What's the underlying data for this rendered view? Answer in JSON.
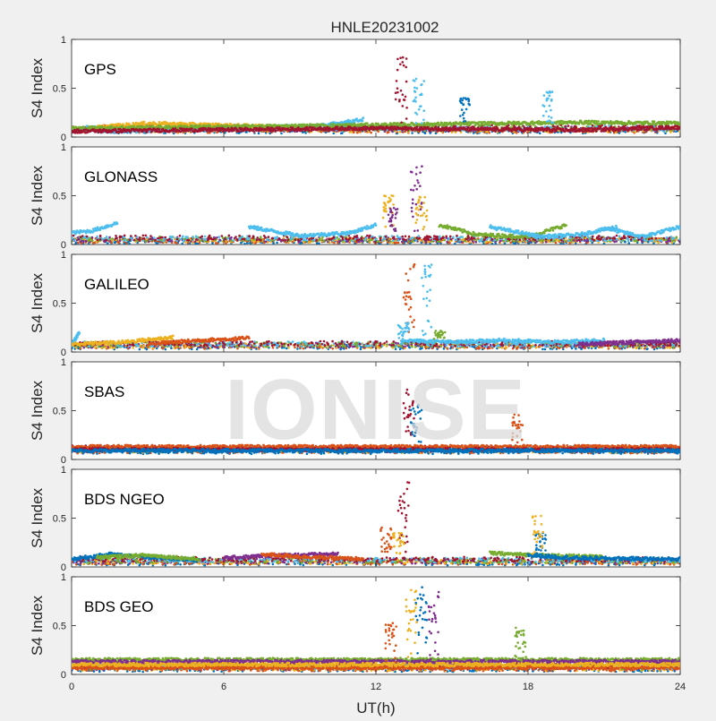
{
  "chart_data": {
    "type": "scatter",
    "title": "HNLE20231002",
    "xlabel": "UT(h)",
    "ylabel": "S4 Index",
    "xlim": [
      0,
      24
    ],
    "ylim": [
      0,
      1
    ],
    "x_ticks": [
      0,
      6,
      12,
      18,
      24
    ],
    "y_ticks": [
      0,
      0.5,
      1
    ],
    "watermark": "IONISE",
    "colors": [
      "#0072BD",
      "#D95319",
      "#EDB120",
      "#7E2F8E",
      "#77AC30",
      "#4DBEEE",
      "#A2142F"
    ],
    "panels": [
      {
        "label": "GPS",
        "baseline": [
          [
            0,
            0.08
          ],
          [
            24,
            0.08
          ]
        ],
        "arcs": [
          {
            "color": "#4DBEEE",
            "points": [
              [
                0,
                0.07
              ],
              [
                2,
                0.06
              ],
              [
                5,
                0.08
              ],
              [
                8,
                0.1
              ],
              [
                10,
                0.12
              ],
              [
                11.5,
                0.18
              ]
            ]
          },
          {
            "color": "#EDB120",
            "points": [
              [
                1,
                0.1
              ],
              [
                3,
                0.14
              ],
              [
                6,
                0.12
              ],
              [
                9,
                0.1
              ]
            ]
          },
          {
            "color": "#77AC30",
            "points": [
              [
                0,
                0.09
              ],
              [
                4,
                0.1
              ],
              [
                8,
                0.11
              ],
              [
                20,
                0.15
              ],
              [
                24,
                0.14
              ]
            ]
          },
          {
            "color": "#A2142F",
            "points": [
              [
                0,
                0.06
              ],
              [
                4,
                0.07
              ],
              [
                8,
                0.08
              ],
              [
                12,
                0.09
              ],
              [
                16,
                0.08
              ],
              [
                20,
                0.07
              ],
              [
                24,
                0.1
              ]
            ]
          }
        ],
        "spikes": [
          {
            "color": "#A2142F",
            "x": 13.0,
            "peak": 0.83
          },
          {
            "color": "#4DBEEE",
            "x": 13.7,
            "peak": 0.62
          },
          {
            "color": "#0072BD",
            "x": 15.5,
            "peak": 0.4
          },
          {
            "color": "#4DBEEE",
            "x": 18.8,
            "peak": 0.47
          }
        ]
      },
      {
        "label": "GLONASS",
        "baseline": [
          [
            0,
            0.05
          ],
          [
            24,
            0.05
          ]
        ],
        "arcs": [
          {
            "color": "#4DBEEE",
            "points": [
              [
                0,
                0.12
              ],
              [
                0.8,
                0.14
              ],
              [
                1.8,
                0.22
              ]
            ]
          },
          {
            "color": "#4DBEEE",
            "points": [
              [
                7,
                0.18
              ],
              [
                9,
                0.09
              ],
              [
                11,
                0.12
              ],
              [
                12,
                0.2
              ]
            ]
          },
          {
            "color": "#77AC30",
            "points": [
              [
                14.5,
                0.2
              ],
              [
                16,
                0.1
              ],
              [
                18,
                0.08
              ],
              [
                19.5,
                0.2
              ]
            ]
          },
          {
            "color": "#4DBEEE",
            "points": [
              [
                16.5,
                0.18
              ],
              [
                18.5,
                0.08
              ],
              [
                20,
                0.1
              ],
              [
                21.5,
                0.18
              ]
            ]
          },
          {
            "color": "#4DBEEE",
            "points": [
              [
                21,
                0.17
              ],
              [
                22.5,
                0.08
              ],
              [
                24,
                0.18
              ]
            ]
          }
        ],
        "spikes": [
          {
            "color": "#EDB120",
            "x": 12.5,
            "peak": 0.52
          },
          {
            "color": "#7E2F8E",
            "x": 12.7,
            "peak": 0.4
          },
          {
            "color": "#7E2F8E",
            "x": 13.6,
            "peak": 0.83
          },
          {
            "color": "#EDB120",
            "x": 13.8,
            "peak": 0.5
          }
        ]
      },
      {
        "label": "GALILEO",
        "baseline": [
          [
            0,
            0.07
          ],
          [
            24,
            0.07
          ]
        ],
        "arcs": [
          {
            "color": "#4DBEEE",
            "points": [
              [
                0,
                0.07
              ],
              [
                0.3,
                0.2
              ]
            ]
          },
          {
            "color": "#EDB120",
            "points": [
              [
                0,
                0.08
              ],
              [
                2,
                0.1
              ],
              [
                4,
                0.15
              ]
            ]
          },
          {
            "color": "#D95319",
            "points": [
              [
                3,
                0.08
              ],
              [
                5,
                0.12
              ],
              [
                7,
                0.14
              ]
            ]
          },
          {
            "color": "#4DBEEE",
            "points": [
              [
                13,
                0.12
              ],
              [
                15,
                0.1
              ],
              [
                17,
                0.12
              ],
              [
                19,
                0.1
              ],
              [
                21,
                0.12
              ]
            ]
          },
          {
            "color": "#7E2F8E",
            "points": [
              [
                20,
                0.08
              ],
              [
                22,
                0.1
              ],
              [
                24,
                0.12
              ]
            ]
          }
        ],
        "spikes": [
          {
            "color": "#D95319",
            "x": 13.3,
            "peak": 0.9
          },
          {
            "color": "#4DBEEE",
            "x": 14.0,
            "peak": 0.93
          },
          {
            "color": "#4DBEEE",
            "x": 13.1,
            "peak": 0.3
          },
          {
            "color": "#77AC30",
            "x": 14.5,
            "peak": 0.22
          }
        ]
      },
      {
        "label": "SBAS",
        "baseline": [
          [
            0,
            0.1
          ],
          [
            24,
            0.1
          ]
        ],
        "arcs": [
          {
            "color": "#D95319",
            "points": [
              [
                0,
                0.13
              ],
              [
                24,
                0.13
              ]
            ]
          },
          {
            "color": "#A2142F",
            "points": [
              [
                0,
                0.1
              ],
              [
                24,
                0.1
              ]
            ]
          },
          {
            "color": "#0072BD",
            "points": [
              [
                0,
                0.09
              ],
              [
                24,
                0.09
              ]
            ]
          }
        ],
        "spikes": [
          {
            "color": "#A2142F",
            "x": 13.3,
            "peak": 0.72
          },
          {
            "color": "#0072BD",
            "x": 13.6,
            "peak": 0.58
          },
          {
            "color": "#D95319",
            "x": 17.6,
            "peak": 0.47
          }
        ]
      },
      {
        "label": "BDS NGEO",
        "baseline": [
          [
            0,
            0.06
          ],
          [
            24,
            0.06
          ]
        ],
        "arcs": [
          {
            "color": "#0072BD",
            "points": [
              [
                0,
                0.08
              ],
              [
                1.5,
                0.13
              ],
              [
                3,
                0.1
              ],
              [
                5,
                0.07
              ]
            ]
          },
          {
            "color": "#77AC30",
            "points": [
              [
                1,
                0.1
              ],
              [
                3,
                0.12
              ],
              [
                5,
                0.08
              ]
            ]
          },
          {
            "color": "#7E2F8E",
            "points": [
              [
                6,
                0.09
              ],
              [
                8,
                0.12
              ],
              [
                10.5,
                0.13
              ]
            ]
          },
          {
            "color": "#D95319",
            "points": [
              [
                7.5,
                0.13
              ],
              [
                9.5,
                0.1
              ],
              [
                11.5,
                0.08
              ]
            ]
          },
          {
            "color": "#77AC30",
            "points": [
              [
                16.5,
                0.14
              ],
              [
                18.5,
                0.12
              ],
              [
                21,
                0.1
              ]
            ]
          },
          {
            "color": "#0072BD",
            "points": [
              [
                18,
                0.12
              ],
              [
                20,
                0.09
              ],
              [
                24,
                0.08
              ]
            ]
          }
        ],
        "spikes": [
          {
            "color": "#A2142F",
            "x": 13.1,
            "peak": 0.87
          },
          {
            "color": "#D95319",
            "x": 12.4,
            "peak": 0.42
          },
          {
            "color": "#EDB120",
            "x": 12.9,
            "peak": 0.35
          },
          {
            "color": "#0072BD",
            "x": 18.5,
            "peak": 0.35
          },
          {
            "color": "#EDB120",
            "x": 18.4,
            "peak": 0.53
          }
        ]
      },
      {
        "label": "BDS GEO",
        "baseline": [
          [
            0,
            0.07
          ],
          [
            24,
            0.07
          ]
        ],
        "arcs": [
          {
            "color": "#77AC30",
            "points": [
              [
                0,
                0.15
              ],
              [
                24,
                0.15
              ]
            ]
          },
          {
            "color": "#7E2F8E",
            "points": [
              [
                0,
                0.13
              ],
              [
                24,
                0.13
              ]
            ]
          },
          {
            "color": "#D95319",
            "points": [
              [
                0,
                0.07
              ],
              [
                24,
                0.07
              ]
            ]
          },
          {
            "color": "#EDB120",
            "points": [
              [
                0,
                0.1
              ],
              [
                24,
                0.1
              ]
            ]
          }
        ],
        "spikes": [
          {
            "color": "#D95319",
            "x": 12.6,
            "peak": 0.55
          },
          {
            "color": "#EDB120",
            "x": 13.4,
            "peak": 0.88
          },
          {
            "color": "#0072BD",
            "x": 13.8,
            "peak": 0.9
          },
          {
            "color": "#7E2F8E",
            "x": 14.3,
            "peak": 0.85
          },
          {
            "color": "#77AC30",
            "x": 17.7,
            "peak": 0.48
          }
        ]
      }
    ]
  }
}
